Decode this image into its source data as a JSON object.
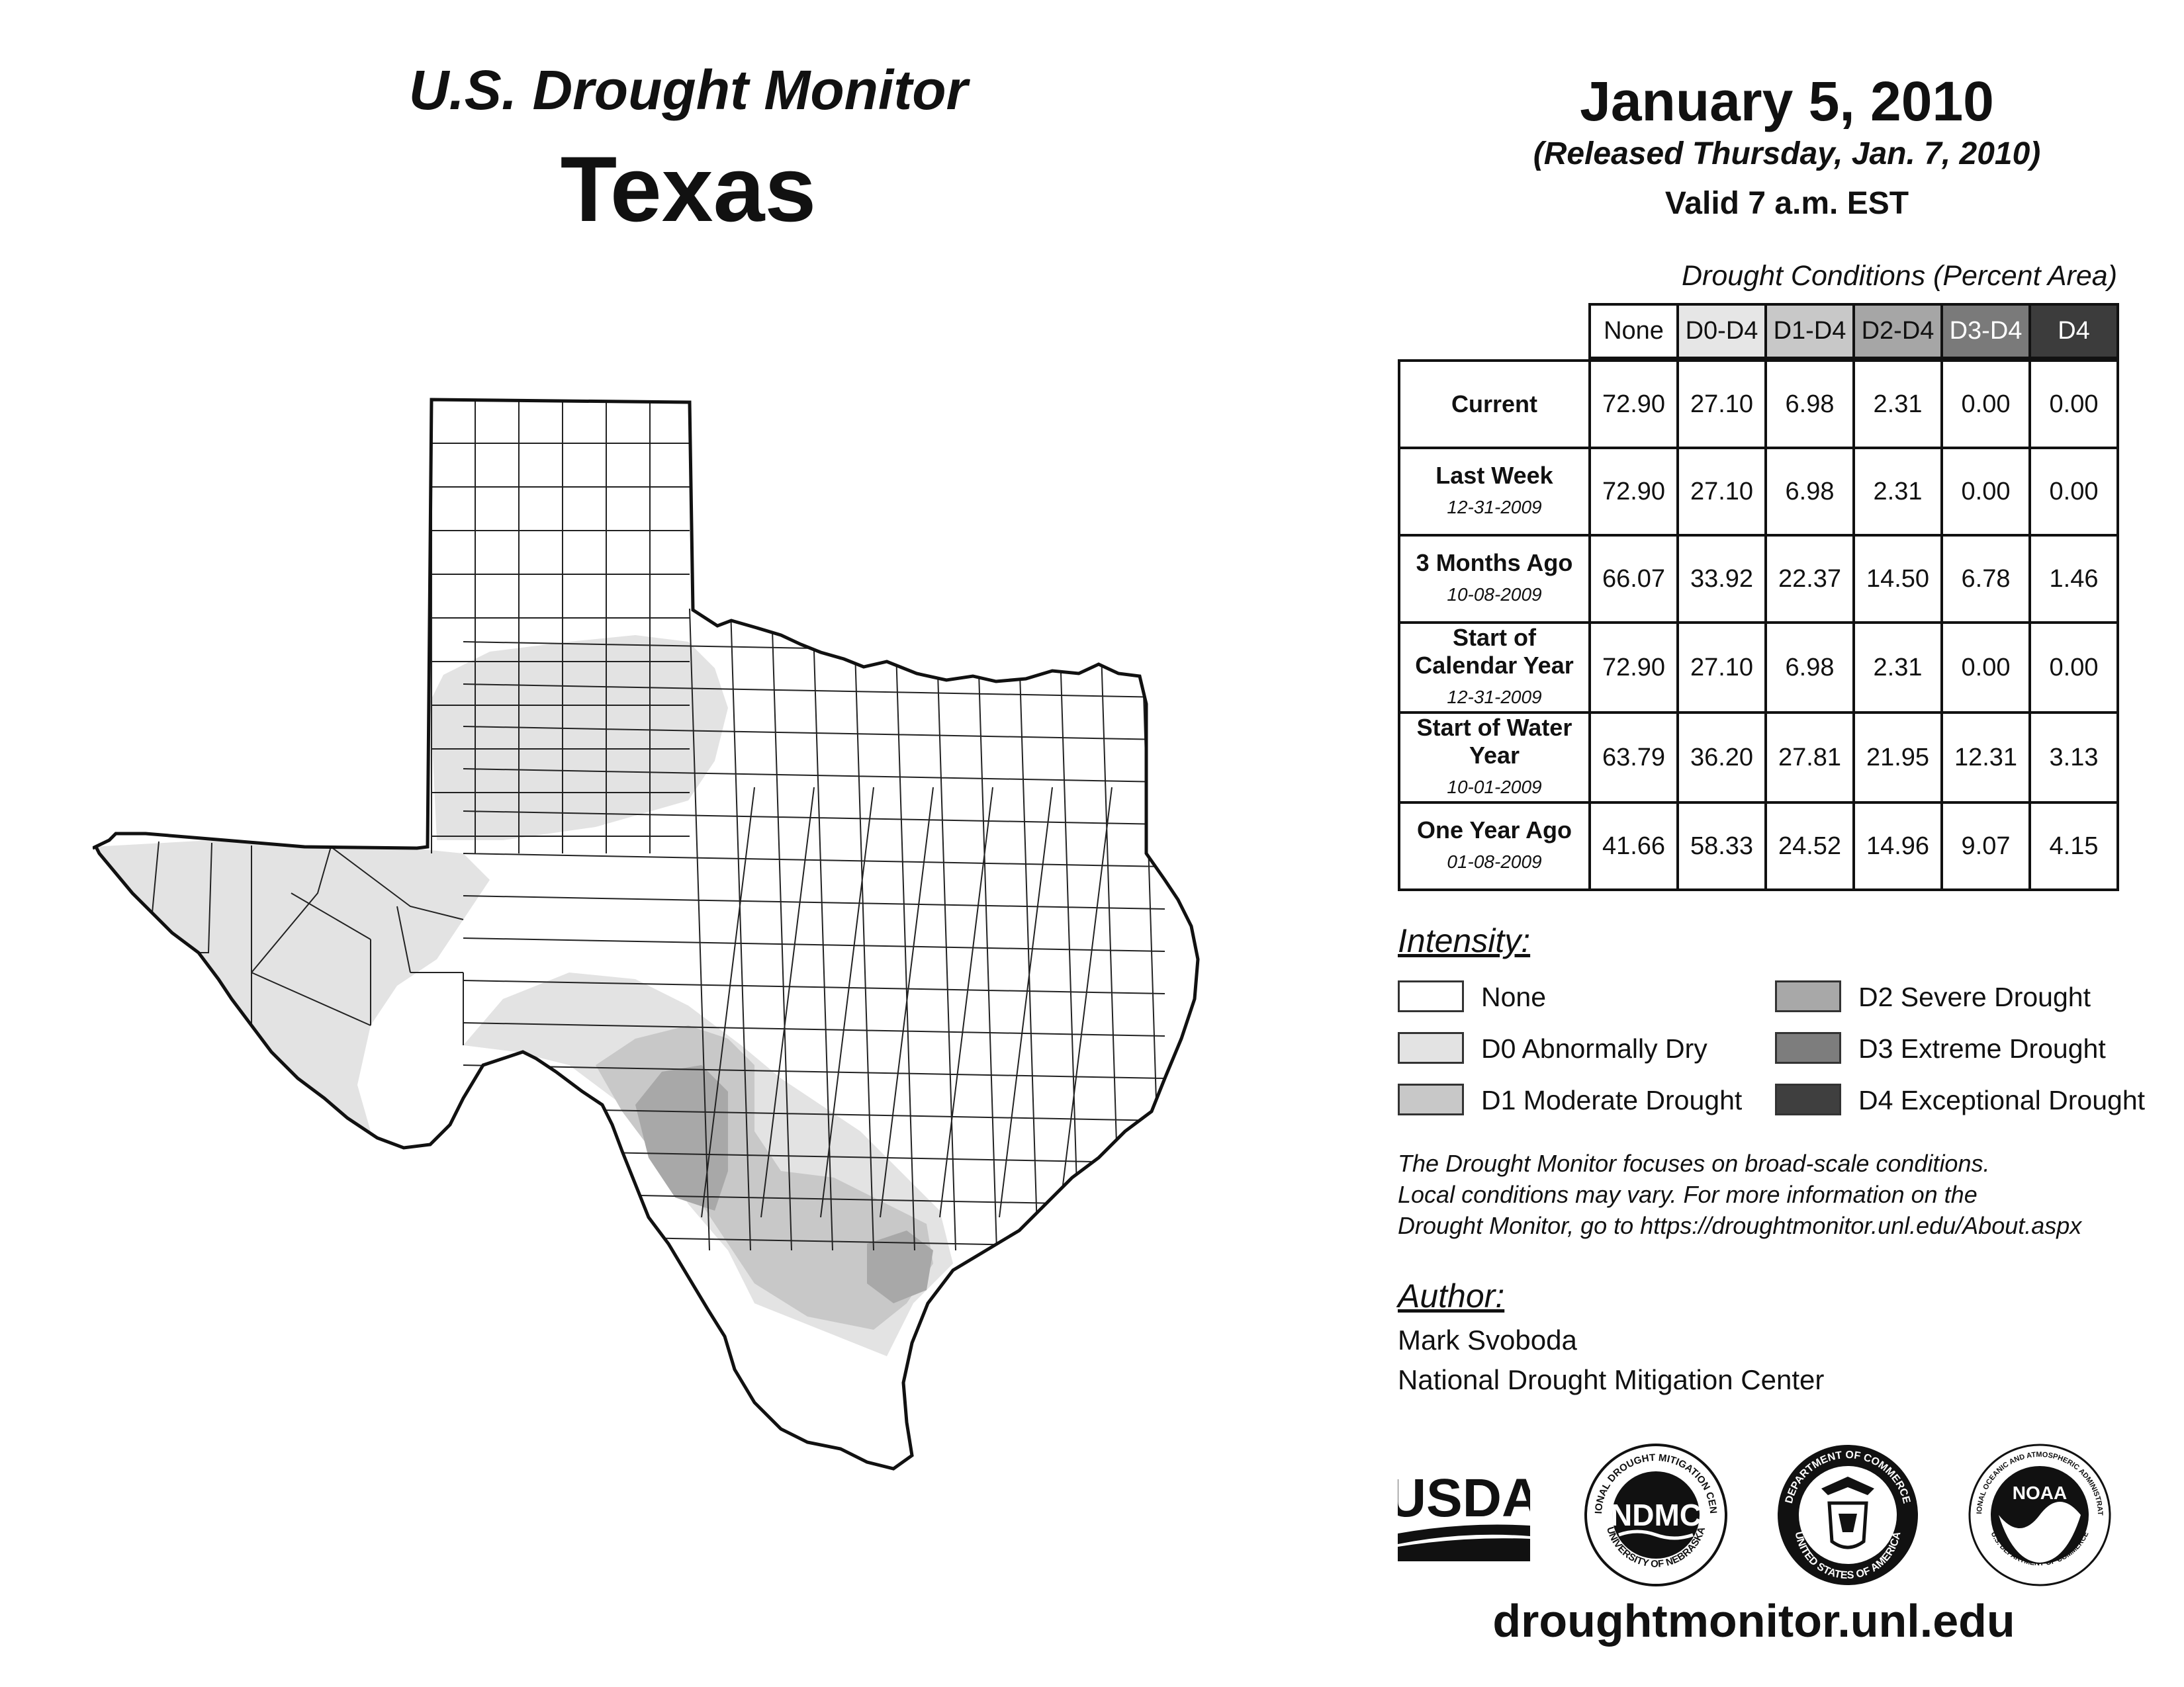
{
  "header": {
    "product": "U.S. Drought Monitor",
    "region": "Texas",
    "date": "January 5, 2010",
    "released": "(Released Thursday, Jan. 7, 2010)",
    "valid": "Valid 7 a.m. EST"
  },
  "table": {
    "caption": "Drought Conditions (Percent Area)",
    "columns": [
      "None",
      "D0-D4",
      "D1-D4",
      "D2-D4",
      "D3-D4",
      "D4"
    ],
    "column_colors": [
      "#ffffff",
      "#e6e6e6",
      "#c8c8c8",
      "#a6a6a6",
      "#7a7a7a",
      "#3c3c3c"
    ],
    "rows": [
      {
        "label": "Current",
        "date": "",
        "values": [
          "72.90",
          "27.10",
          "6.98",
          "2.31",
          "0.00",
          "0.00"
        ]
      },
      {
        "label": "Last Week",
        "date": "12-31-2009",
        "values": [
          "72.90",
          "27.10",
          "6.98",
          "2.31",
          "0.00",
          "0.00"
        ]
      },
      {
        "label": "3 Months Ago",
        "date": "10-08-2009",
        "values": [
          "66.07",
          "33.92",
          "22.37",
          "14.50",
          "6.78",
          "1.46"
        ]
      },
      {
        "label": "Start of Calendar Year",
        "date": "12-31-2009",
        "values": [
          "72.90",
          "27.10",
          "6.98",
          "2.31",
          "0.00",
          "0.00"
        ]
      },
      {
        "label": "Start of Water Year",
        "date": "10-01-2009",
        "values": [
          "63.79",
          "36.20",
          "27.81",
          "21.95",
          "12.31",
          "3.13"
        ]
      },
      {
        "label": "One Year Ago",
        "date": "01-08-2009",
        "values": [
          "41.66",
          "58.33",
          "24.52",
          "14.96",
          "9.07",
          "4.15"
        ]
      }
    ]
  },
  "legend": {
    "title": "Intensity:",
    "items": [
      {
        "label": "None",
        "color": "#ffffff"
      },
      {
        "label": "D0 Abnormally Dry",
        "color": "#e3e3e3"
      },
      {
        "label": "D1 Moderate Drought",
        "color": "#c8c8c8"
      },
      {
        "label": "D2 Severe Drought",
        "color": "#a8a8a8"
      },
      {
        "label": "D3 Extreme Drought",
        "color": "#7d7d7d"
      },
      {
        "label": "D4 Exceptional Drought",
        "color": "#3f3f3f"
      }
    ]
  },
  "note": {
    "line1": "The Drought Monitor focuses on broad-scale conditions.",
    "line2": "Local conditions may vary. For more information on the",
    "line3": "Drought Monitor, go to https://droughtmonitor.unl.edu/About.aspx"
  },
  "author": {
    "title": "Author:",
    "name": "Mark Svoboda",
    "org": "National Drought Mitigation Center"
  },
  "logos": {
    "usda": "USDA",
    "ndmc": "NDMC",
    "ndmc_ring_top": "NATIONAL DROUGHT MITIGATION CENTER",
    "ndmc_ring_bottom": "UNIVERSITY OF NEBRASKA",
    "doc_ring_top": "DEPARTMENT OF COMMERCE",
    "doc_ring_bottom": "UNITED STATES OF AMERICA",
    "noaa": "NOAA",
    "noaa_ring_top": "NATIONAL OCEANIC AND ATMOSPHERIC ADMINISTRATION",
    "noaa_ring_bottom": "U.S. DEPARTMENT OF COMMERCE"
  },
  "website": "droughtmonitor.unl.edu",
  "map_colors": {
    "d0": "#e3e3e3",
    "d1": "#c8c8c8",
    "d2": "#a8a8a8",
    "border": "#111111"
  }
}
